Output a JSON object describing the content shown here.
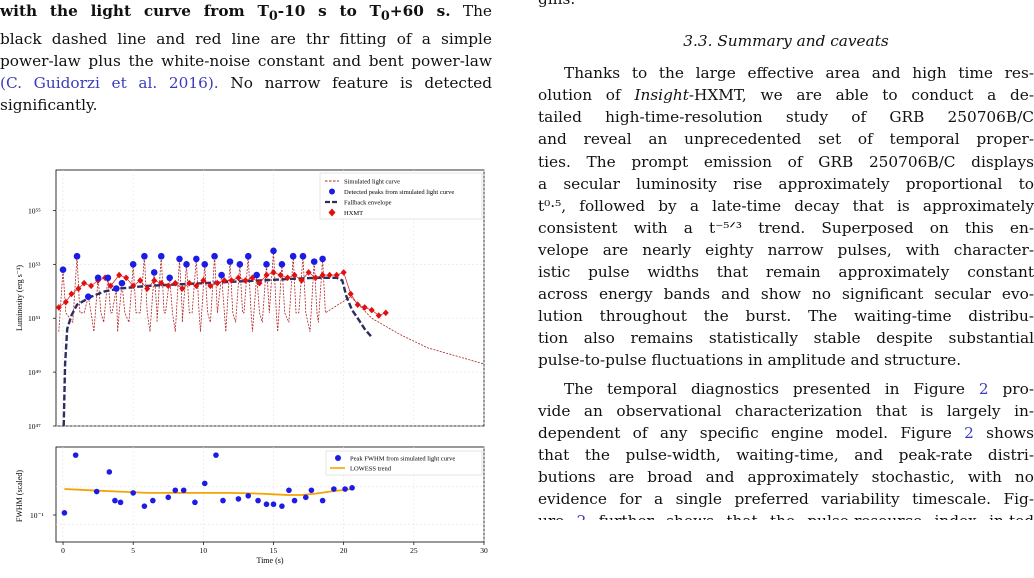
{
  "left_caption": {
    "line1_a": "with the light curve from T",
    "line1_sub1": "0",
    "line1_b": "-10 s to T",
    "line1_sub2": "0",
    "line1_c": "+60 s.",
    "line1_d": " The",
    "line2": "black dashed line and red line are thr fitting of a simple",
    "line3": "power-law plus the white-noise constant and bent power-law",
    "line4_cite": "(C. Guidorzi et al. 2016).",
    "line4_rest": " No narrow feature is detected",
    "line5": "significantly."
  },
  "top_panel": {
    "ylabel": "Luminosity (erg s⁻¹)",
    "yticks": [
      "10⁵⁵",
      "10⁵³",
      "10⁵¹",
      "10⁴⁹",
      "10⁴⁷"
    ],
    "legend": [
      {
        "label": "Simulated light curve",
        "style": "dashed-red"
      },
      {
        "label": "Detected peaks from simulated light curve",
        "style": "blue-dot"
      },
      {
        "label": "Fallback envelope",
        "style": "dashed-navy"
      },
      {
        "label": "HXMT",
        "style": "red-diamond"
      }
    ]
  },
  "bottom_panel": {
    "ylabel": "FWHM (scaled)",
    "ytick": "10⁻¹",
    "xlabel": "Time (s)",
    "xticks": [
      "0",
      "5",
      "10",
      "15",
      "20",
      "25",
      "30"
    ],
    "legend": [
      {
        "label": "Peak FWHM from simulated light curve",
        "style": "blue-dot"
      },
      {
        "label": "LOWESS trend",
        "style": "orange-line"
      }
    ]
  },
  "chart_data": [
    {
      "type": "scatter",
      "panel": "top",
      "ylabel": "Luminosity (erg s⁻¹)",
      "yscale": "log",
      "xlim": [
        -0.5,
        30
      ],
      "ylim_log10": [
        47,
        56.5
      ],
      "grid": true,
      "legend_placement": "top-right",
      "series": [
        {
          "name": "Detected peaks from simulated light curve",
          "x": [
            0,
            1,
            1.8,
            2.5,
            3.2,
            3.8,
            4.2,
            5,
            5.8,
            6.5,
            7,
            7.6,
            8.3,
            8.8,
            9.5,
            10.1,
            10.8,
            11.3,
            11.9,
            12.6,
            13.2,
            13.8,
            14.5,
            15,
            15.6,
            16.4,
            17.1,
            17.9,
            18.5
          ],
          "y_log10": [
            52.8,
            53.3,
            51.8,
            52.5,
            52.5,
            52.1,
            52.3,
            53.0,
            53.3,
            52.7,
            53.3,
            52.5,
            53.2,
            53.0,
            53.2,
            53.0,
            53.3,
            52.6,
            53.1,
            53.0,
            53.3,
            52.6,
            53.0,
            53.5,
            53.0,
            53.3,
            53.3,
            53.1,
            53.2
          ]
        },
        {
          "name": "HXMT",
          "x": [
            -0.3,
            0.2,
            0.6,
            1.1,
            1.5,
            2.0,
            2.5,
            3.0,
            3.4,
            4.0,
            4.5,
            5.0,
            5.5,
            6.0,
            6.5,
            7.0,
            7.5,
            8.0,
            8.5,
            9.0,
            9.5,
            10.0,
            10.5,
            11.0,
            11.5,
            12.0,
            12.5,
            13.0,
            13.5,
            14.0,
            14.5,
            15.0,
            15.5,
            16.0,
            16.5,
            17.0,
            17.5,
            18.0,
            18.5,
            19.0,
            19.5,
            20.0,
            20.5,
            21.0,
            21.5,
            22.0,
            22.5,
            23.0
          ],
          "y_log10": [
            51.4,
            51.6,
            51.9,
            52.1,
            52.3,
            52.2,
            52.4,
            52.5,
            52.2,
            52.6,
            52.5,
            52.2,
            52.4,
            52.1,
            52.4,
            52.3,
            52.2,
            52.3,
            52.1,
            52.3,
            52.2,
            52.4,
            52.2,
            52.3,
            52.4,
            52.4,
            52.5,
            52.4,
            52.5,
            52.3,
            52.6,
            52.7,
            52.6,
            52.5,
            52.6,
            52.4,
            52.7,
            52.5,
            52.6,
            52.6,
            52.6,
            52.7,
            51.9,
            51.5,
            51.4,
            51.3,
            51.1,
            51.2
          ]
        },
        {
          "name": "Fallback envelope",
          "x": [
            0.05,
            0.15,
            0.3,
            0.6,
            1,
            2,
            3,
            4,
            6,
            8,
            10,
            12,
            14,
            16,
            18,
            19.5,
            19.9,
            20.2,
            20.6,
            21,
            21.5,
            22
          ],
          "y_log10": [
            47,
            49.3,
            50.6,
            51.1,
            51.5,
            51.8,
            52.0,
            52.1,
            52.2,
            52.25,
            52.3,
            52.35,
            52.4,
            52.45,
            52.5,
            52.5,
            52.4,
            51.8,
            51.3,
            51.0,
            50.6,
            50.3
          ]
        },
        {
          "name": "Simulated light curve",
          "x": [
            20.5,
            22,
            24,
            26,
            28,
            30
          ],
          "y_log10": [
            51.8,
            51.0,
            50.4,
            49.9,
            49.6,
            49.3
          ]
        }
      ]
    },
    {
      "type": "scatter",
      "panel": "bottom",
      "ylabel": "FWHM (scaled)",
      "xlabel": "Time (s)",
      "yscale": "log",
      "xlim": [
        -0.5,
        30
      ],
      "grid": true,
      "legend_placement": "top-right",
      "series": [
        {
          "name": "Peak FWHM from simulated light curve",
          "x": [
            0.1,
            0.9,
            2.4,
            3.3,
            3.7,
            4.1,
            5.0,
            5.8,
            6.4,
            7.5,
            8.0,
            8.6,
            9.4,
            10.1,
            10.9,
            11.4,
            12.5,
            13.2,
            13.9,
            14.5,
            15.0,
            15.6,
            16.1,
            16.5,
            17.3,
            17.7,
            18.5,
            19.3,
            20.1,
            20.6
          ],
          "y": [
            0.14,
            0.75,
            0.26,
            0.46,
            0.2,
            0.19,
            0.25,
            0.17,
            0.2,
            0.22,
            0.27,
            0.27,
            0.19,
            0.33,
            0.75,
            0.2,
            0.21,
            0.23,
            0.2,
            0.18,
            0.18,
            0.17,
            0.27,
            0.2,
            0.22,
            0.27,
            0.2,
            0.28,
            0.28,
            0.29
          ]
        },
        {
          "name": "LOWESS trend",
          "x": [
            0.1,
            2,
            4,
            6,
            8,
            10,
            12,
            14,
            15,
            16,
            17,
            18,
            19,
            20.6
          ],
          "y": [
            0.28,
            0.27,
            0.26,
            0.25,
            0.25,
            0.25,
            0.25,
            0.245,
            0.24,
            0.235,
            0.235,
            0.245,
            0.26,
            0.28
          ]
        }
      ]
    }
  ],
  "right_column": {
    "cut_line": "gins.",
    "section_heading": "3.3. Summary and caveats",
    "para1_line1": "Thanks to the large effective area and high time res-",
    "para1_line2": "olution of Insight-HXMT, we are able to conduct a de-",
    "para1_line3": "tailed high-time-resolution study of GRB 250706B/C",
    "para1_line4": "and reveal an unprecedented set of temporal proper-",
    "para1_line5": "ties. The prompt emission of GRB 250706B/C displays",
    "para1_line6": "a secular luminosity rise approximately proportional to",
    "para1_line7": "t⁰·⁵, followed by a late-time decay that is approximately",
    "para1_line8": "consistent with a t⁻⁵ᐟ³ trend. Superposed on this en-",
    "para1_line9": "velope are nearly eighty narrow pulses, with character-",
    "para1_line10": "istic pulse widths that remain approximately constant",
    "para1_line11": "across energy bands and show no significant secular evo-",
    "para1_line12": "lution throughout the burst. The waiting-time distribu-",
    "para1_line13": "tion also remains statistically stable despite substantial",
    "para1_line14": "pulse-to-pulse fluctuations in amplitude and structure.",
    "para2_line1_a": "The temporal diagnostics presented in Figure ",
    "para2_line1_ref": "2",
    "para2_line1_b": " pro-",
    "para2_line2_a": "vide an observational characterization that is largely in-",
    "para2_line3_a": "dependent of any specific engine model. Figure ",
    "para2_line3_ref": "2",
    "para2_line3_b": " shows",
    "para2_line4": "that the pulse-width, waiting-time, and peak-rate distri-",
    "para2_line5": "butions are broad and approximately stochastic, with no",
    "para2_line6": "evidence for a single preferred variability timescale. Fig-",
    "para2_line7_a": "ure ",
    "para2_line7_ref": "2",
    "para2_line7_b": " further shows that the pulse-resource index in-ted"
  }
}
